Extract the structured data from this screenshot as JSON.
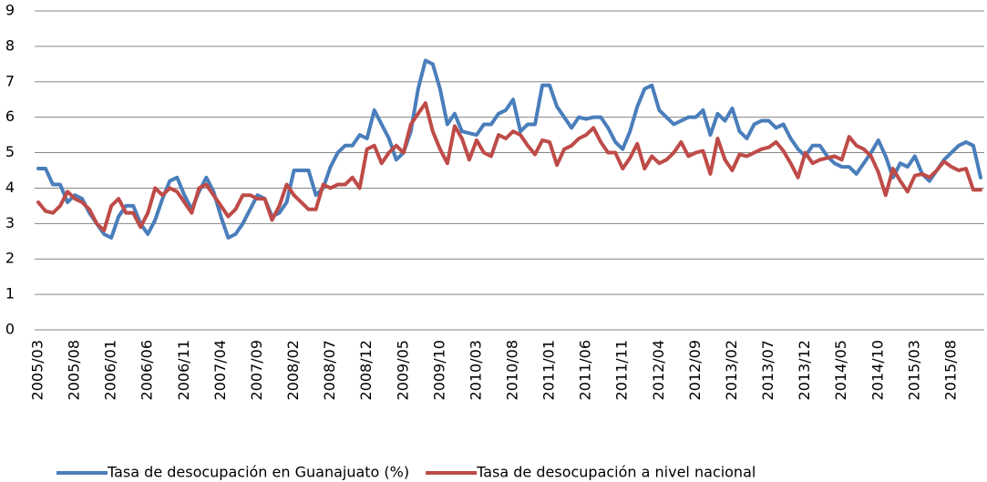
{
  "chart_data": {
    "type": "line",
    "categories": [
      "2005/03",
      null,
      null,
      null,
      null,
      "2005/08",
      null,
      null,
      null,
      null,
      "2006/01",
      null,
      null,
      null,
      null,
      "2006/06",
      null,
      null,
      null,
      null,
      "2006/11",
      null,
      null,
      null,
      null,
      "2007/04",
      null,
      null,
      null,
      null,
      "2007/09",
      null,
      null,
      null,
      null,
      "2008/02",
      null,
      null,
      null,
      null,
      "2008/07",
      null,
      null,
      null,
      null,
      "2008/12",
      null,
      null,
      null,
      null,
      "2009/05",
      null,
      null,
      null,
      null,
      "2009/10",
      null,
      null,
      null,
      null,
      "2010/03",
      null,
      null,
      null,
      null,
      "2010/08",
      null,
      null,
      null,
      null,
      "2011/01",
      null,
      null,
      null,
      null,
      "2011/06",
      null,
      null,
      null,
      null,
      "2011/11",
      null,
      null,
      null,
      null,
      "2012/04",
      null,
      null,
      null,
      null,
      "2012/09",
      null,
      null,
      null,
      null,
      "2013/02",
      null,
      null,
      null,
      null,
      "2013/07",
      null,
      null,
      null,
      null,
      "2013/12",
      null,
      null,
      null,
      null,
      "2014/05",
      null,
      null,
      null,
      null,
      "2014/10",
      null,
      null,
      null,
      null,
      "2015/03",
      null,
      null,
      null,
      null,
      "2015/08",
      null,
      null,
      null,
      null
    ],
    "series": [
      {
        "name": "Tasa de desocupación en Guanajuato (%)",
        "color": "#4a7ebb",
        "values": [
          4.55,
          4.55,
          4.1,
          4.1,
          3.6,
          3.8,
          3.7,
          3.3,
          3.0,
          2.7,
          2.6,
          3.2,
          3.5,
          3.5,
          3.0,
          2.7,
          3.1,
          3.7,
          4.2,
          4.3,
          3.8,
          3.4,
          3.9,
          4.3,
          3.9,
          3.2,
          2.6,
          2.7,
          3.0,
          3.4,
          3.8,
          3.7,
          3.2,
          3.3,
          3.6,
          4.5,
          4.5,
          4.5,
          3.8,
          4.0,
          4.6,
          5.0,
          5.2,
          5.2,
          5.5,
          5.4,
          6.2,
          5.8,
          5.4,
          4.8,
          5.0,
          5.6,
          6.8,
          7.6,
          7.5,
          6.8,
          5.8,
          6.1,
          5.6,
          5.55,
          5.5,
          5.8,
          5.8,
          6.1,
          6.2,
          6.5,
          5.6,
          5.8,
          5.8,
          6.9,
          6.9,
          6.3,
          6.0,
          5.7,
          6.0,
          5.95,
          6.0,
          6.0,
          5.7,
          5.3,
          5.1,
          5.6,
          6.3,
          6.8,
          6.9,
          6.2,
          6.0,
          5.8,
          5.9,
          6.0,
          6.0,
          6.2,
          5.5,
          6.1,
          5.9,
          6.25,
          5.6,
          5.4,
          5.8,
          5.9,
          5.9,
          5.7,
          5.8,
          5.4,
          5.1,
          4.9,
          5.2,
          5.2,
          4.9,
          4.7,
          4.6,
          4.6,
          4.4,
          4.7,
          5.0,
          5.35,
          4.9,
          4.3,
          4.7,
          4.6,
          4.9,
          4.4,
          4.2,
          4.5,
          4.8,
          5.0,
          5.2,
          5.3,
          5.2,
          4.3
        ]
      },
      {
        "name": "Tasa de desocupación a nivel nacional",
        "color": "#be4b48",
        "values": [
          3.6,
          3.35,
          3.3,
          3.5,
          3.9,
          3.7,
          3.6,
          3.4,
          3.0,
          2.8,
          3.5,
          3.7,
          3.3,
          3.3,
          2.9,
          3.3,
          4.0,
          3.8,
          4.0,
          3.9,
          3.6,
          3.3,
          4.0,
          4.1,
          3.8,
          3.5,
          3.2,
          3.4,
          3.8,
          3.8,
          3.7,
          3.7,
          3.1,
          3.5,
          4.1,
          3.8,
          3.6,
          3.4,
          3.4,
          4.1,
          4.0,
          4.1,
          4.1,
          4.3,
          4.0,
          5.1,
          5.2,
          4.7,
          5.0,
          5.2,
          5.0,
          5.8,
          6.1,
          6.4,
          5.6,
          5.1,
          4.7,
          5.75,
          5.4,
          4.8,
          5.35,
          5.0,
          4.9,
          5.5,
          5.4,
          5.6,
          5.5,
          5.2,
          4.95,
          5.35,
          5.3,
          4.65,
          5.1,
          5.2,
          5.4,
          5.5,
          5.7,
          5.3,
          5.0,
          5.0,
          4.55,
          4.85,
          5.25,
          4.55,
          4.9,
          4.7,
          4.8,
          5.0,
          5.3,
          4.9,
          5.0,
          5.05,
          4.4,
          5.4,
          4.8,
          4.5,
          4.95,
          4.9,
          5.0,
          5.1,
          5.15,
          5.3,
          5.05,
          4.7,
          4.3,
          5.0,
          4.7,
          4.8,
          4.85,
          4.9,
          4.8,
          5.45,
          5.2,
          5.1,
          4.9,
          4.45,
          3.8,
          4.55,
          4.2,
          3.9,
          4.35,
          4.4,
          4.3,
          4.5,
          4.75,
          4.6,
          4.5,
          4.55,
          3.95,
          3.95
        ]
      }
    ],
    "ylim": [
      0,
      9
    ],
    "yticks": [
      0,
      1,
      2,
      3,
      4,
      5,
      6,
      7,
      8,
      9
    ],
    "grid": true,
    "legend": "bottom"
  }
}
